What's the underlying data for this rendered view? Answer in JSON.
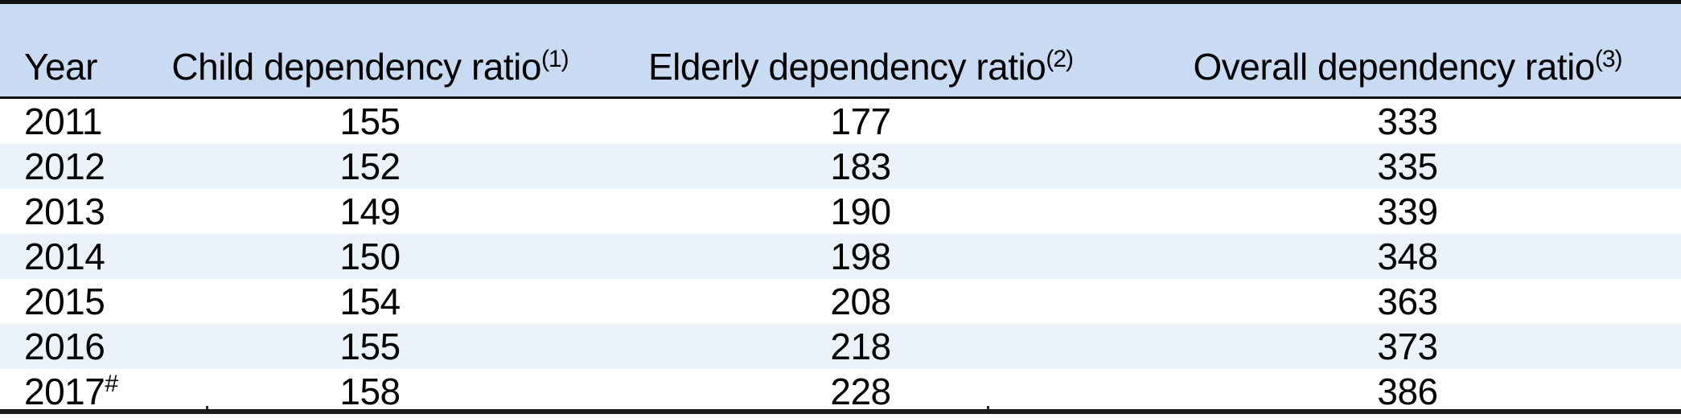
{
  "table": {
    "columns": [
      {
        "label": "Year",
        "sup": ""
      },
      {
        "label": "Child dependency ratio",
        "sup": "(1)"
      },
      {
        "label": "Elderly dependency ratio",
        "sup": "(2)"
      },
      {
        "label": "Overall dependency ratio",
        "sup": "(3)"
      }
    ],
    "rows": [
      {
        "year": "2011",
        "mark": "",
        "child": "155",
        "elderly": "177",
        "overall": "333"
      },
      {
        "year": "2012",
        "mark": "",
        "child": "152",
        "elderly": "183",
        "overall": "335"
      },
      {
        "year": "2013",
        "mark": "",
        "child": "149",
        "elderly": "190",
        "overall": "339"
      },
      {
        "year": "2014",
        "mark": "",
        "child": "150",
        "elderly": "198",
        "overall": "348"
      },
      {
        "year": "2015",
        "mark": "",
        "child": "154",
        "elderly": "208",
        "overall": "363"
      },
      {
        "year": "2016",
        "mark": "",
        "child": "155",
        "elderly": "218",
        "overall": "373"
      },
      {
        "year": "2017",
        "mark": "#",
        "child": "158",
        "elderly": "228",
        "overall": "386"
      }
    ]
  },
  "colors": {
    "header_background": "#c9dbf2",
    "stripe_background": "#eaf1f9",
    "rule_color": "#1c1c1c",
    "text_color": "#000000"
  },
  "chart_data": {
    "type": "table",
    "columns": [
      "Year",
      "Child dependency ratio(1)",
      "Elderly dependency ratio(2)",
      "Overall dependency ratio(3)"
    ],
    "rows": [
      [
        "2011",
        155,
        177,
        333
      ],
      [
        "2012",
        152,
        183,
        335
      ],
      [
        "2013",
        149,
        190,
        339
      ],
      [
        "2014",
        150,
        198,
        348
      ],
      [
        "2015",
        154,
        208,
        363
      ],
      [
        "2016",
        155,
        218,
        373
      ],
      [
        "2017#",
        158,
        228,
        386
      ]
    ]
  }
}
